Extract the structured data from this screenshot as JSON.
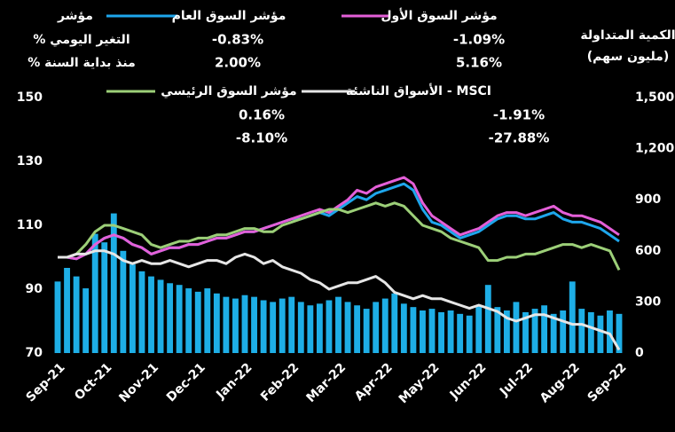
{
  "chart_data": {
    "type": "bar_line",
    "index_header": "مؤشر",
    "daily_change_header": "التغير اليومي %",
    "ytd_header": "منذ بداية السنة %",
    "y2label": [
      "الكمية المتداولة",
      "(مليون سهم)"
    ],
    "categories": [
      "Sep-21",
      null,
      null,
      null,
      null,
      "Oct-21",
      null,
      null,
      null,
      null,
      "Nov-21",
      null,
      null,
      null,
      null,
      "Dec-21",
      null,
      null,
      null,
      null,
      "Jan-22",
      null,
      null,
      null,
      null,
      "Feb-22",
      null,
      null,
      null,
      null,
      "Mar-22",
      null,
      null,
      null,
      null,
      "Apr-22",
      null,
      null,
      null,
      null,
      "May-22",
      null,
      null,
      null,
      null,
      "Jun-22",
      null,
      null,
      null,
      null,
      "Jul-22",
      null,
      null,
      null,
      null,
      "Aug-22",
      null,
      null,
      null,
      null,
      "Sep-22"
    ],
    "ylim": [
      70,
      150
    ],
    "yticks": [
      70,
      90,
      110,
      130,
      150
    ],
    "y2lim": [
      0,
      1500
    ],
    "y2ticks": [
      0,
      300,
      600,
      900,
      {
        "value": 1200,
        "label": "1,200"
      },
      {
        "value": 1500,
        "label": "1,500"
      }
    ],
    "series": [
      {
        "type": "bar",
        "axis": "y2",
        "color": "#1eaee6",
        "values": [
          420,
          500,
          450,
          380,
          700,
          650,
          820,
          600,
          520,
          480,
          450,
          430,
          410,
          400,
          380,
          360,
          380,
          350,
          330,
          320,
          340,
          330,
          310,
          300,
          320,
          330,
          300,
          280,
          290,
          310,
          330,
          300,
          280,
          260,
          300,
          320,
          350,
          290,
          270,
          250,
          260,
          240,
          250,
          230,
          220,
          280,
          400,
          270,
          250,
          300,
          240,
          260,
          280,
          230,
          250,
          420,
          260,
          240,
          220,
          250,
          230
        ]
      },
      {
        "type": "line",
        "name": "مؤشر السوق العام",
        "color": "#1ea6ec",
        "daily_change": "-0.83%",
        "ytd": "2.00%",
        "values": [
          100,
          100,
          99.5,
          101,
          104,
          106,
          107,
          106,
          104,
          103,
          101,
          102,
          103,
          103,
          104,
          104,
          105,
          106,
          106,
          107,
          108,
          108,
          109,
          110,
          111,
          112,
          112,
          113,
          114,
          113,
          115,
          117,
          119,
          118,
          120,
          121,
          122,
          123,
          121,
          115,
          111,
          110,
          108,
          106,
          107,
          108,
          110,
          112,
          113,
          113,
          112,
          112,
          113,
          114,
          112,
          111,
          111,
          110,
          109,
          107,
          105
        ]
      },
      {
        "type": "line",
        "name": "مؤشر السوق الأول",
        "color": "#e45fd8",
        "daily_change": "-1.09%",
        "ytd": "5.16%",
        "values": [
          100,
          100,
          99.5,
          101,
          104,
          106,
          107,
          106,
          104,
          103,
          101,
          102,
          103,
          103,
          104,
          104,
          105,
          106,
          106,
          107,
          108,
          108,
          109,
          110,
          111,
          112,
          113,
          114,
          115,
          114,
          116,
          118,
          121,
          120,
          122,
          123,
          124,
          125,
          123,
          117,
          113,
          111,
          109,
          107,
          108,
          109,
          111,
          113,
          114,
          114,
          113,
          114,
          115,
          116,
          114,
          113,
          113,
          112,
          111,
          109,
          107
        ]
      },
      {
        "type": "line",
        "name": "مؤشر السوق الرئيسي",
        "color": "#9ccf78",
        "daily_change": "0.16%",
        "ytd": "-8.10%",
        "values": [
          100,
          100,
          101,
          104,
          108,
          110,
          110,
          109,
          108,
          107,
          104,
          103,
          104,
          105,
          105,
          106,
          106,
          107,
          107,
          108,
          109,
          109,
          108,
          108,
          110,
          111,
          112,
          113,
          114,
          115,
          115,
          114,
          115,
          116,
          117,
          116,
          117,
          116,
          113,
          110,
          109,
          108,
          106,
          105,
          104,
          103,
          99,
          99,
          100,
          100,
          101,
          101,
          102,
          103,
          104,
          104,
          103,
          104,
          103,
          102,
          96
        ]
      },
      {
        "type": "line",
        "name": "MSCI - الأسواق الناشئة",
        "color": "#e6e6e6",
        "daily_change": "-1.91%",
        "ytd": "-27.88%",
        "values": [
          100,
          100,
          101,
          101,
          102,
          102,
          101,
          99,
          98,
          99,
          98,
          98,
          99,
          98,
          97,
          98,
          99,
          99,
          98,
          100,
          101,
          100,
          98,
          99,
          97,
          96,
          95,
          93,
          92,
          90,
          91,
          92,
          92,
          93,
          94,
          92,
          89,
          88,
          87,
          88,
          87,
          87,
          86,
          85,
          84,
          85,
          84,
          83,
          81,
          80,
          81,
          82,
          82,
          81,
          80,
          79,
          79,
          78,
          77,
          76,
          71
        ]
      }
    ]
  }
}
